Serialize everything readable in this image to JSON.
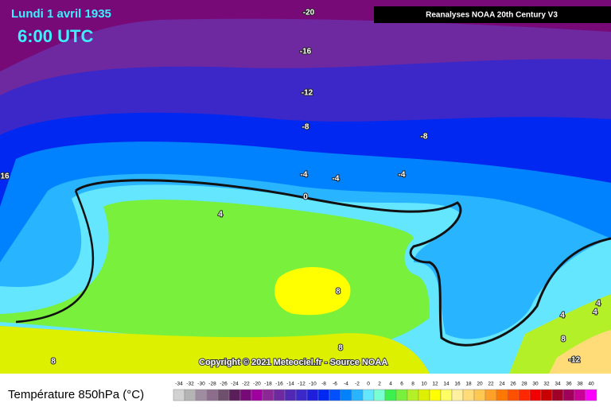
{
  "header": {
    "date": "Lundi 1 avril 1935",
    "time": "6:00 UTC",
    "source_box": "Reanalyses NOAA 20th Century V3"
  },
  "copyright": "Copyright © 2021 Meteociel.fr - Source NOAA",
  "contour_labels": [
    -20,
    -16,
    -12,
    -8,
    -4,
    0,
    4,
    8,
    16,
    -8,
    -4,
    -4,
    4,
    4,
    4,
    8,
    -12,
    8,
    8
  ],
  "legend": {
    "title": "Température 850hPa (°C)",
    "labels": [
      -34,
      -32,
      -30,
      -28,
      -26,
      -24,
      -22,
      -20,
      -18,
      -16,
      -14,
      -12,
      -10,
      -8,
      -6,
      -4,
      -2,
      0,
      2,
      4,
      6,
      8,
      10,
      12,
      14,
      16,
      18,
      20,
      22,
      24,
      26,
      28,
      30,
      32,
      34,
      36,
      38,
      40
    ],
    "colors": [
      "#d2d2d2",
      "#b4b4b4",
      "#a08ca0",
      "#8c6e8c",
      "#6e506e",
      "#5a1e5a",
      "#780a78",
      "#a000a0",
      "#8c2896",
      "#6e28a0",
      "#5028b4",
      "#3c28c8",
      "#1e1edc",
      "#0028f0",
      "#0050ff",
      "#0082ff",
      "#28b4ff",
      "#64e6ff",
      "#78ffd2",
      "#3cf050",
      "#78f03c",
      "#b4f028",
      "#dcf000",
      "#ffff00",
      "#ffff64",
      "#fff0a0",
      "#ffdc78",
      "#ffc850",
      "#ffa028",
      "#ff7800",
      "#ff5000",
      "#ff2800",
      "#f00000",
      "#c80000",
      "#a00028",
      "#a0005a",
      "#c80096",
      "#ff00ff"
    ]
  }
}
